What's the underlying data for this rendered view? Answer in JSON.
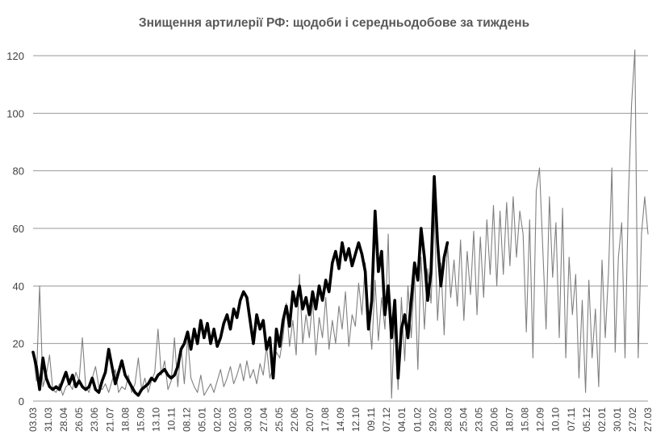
{
  "chart_data": {
    "type": "line",
    "title": "Знищення артилерії РФ: щодоби і середньодобове за тиждень",
    "xlabel": "",
    "ylabel": "",
    "ylim": [
      0,
      120
    ],
    "yticks": [
      0,
      20,
      40,
      60,
      80,
      100,
      120
    ],
    "grid": true,
    "legend": "none",
    "x_tick_labels": [
      "03.03",
      "31.03",
      "28.04",
      "26.05",
      "23.06",
      "21.07",
      "18.08",
      "15.09",
      "13.10",
      "10.11",
      "08.12",
      "05.01",
      "02.02",
      "02.03",
      "30.03",
      "27.04",
      "25.05",
      "22.06",
      "20.07",
      "17.08",
      "14.09",
      "12.10",
      "09.11",
      "07.12",
      "04.01",
      "01.02",
      "29.02",
      "28.03",
      "25.04",
      "23.05",
      "20.06",
      "18.07",
      "15.08",
      "12.09",
      "10.10",
      "07.11",
      "05.12",
      "02.01",
      "30.01",
      "27.02",
      "27.03"
    ],
    "series": [
      {
        "color": "#808080",
        "style": "thin",
        "points": [
          [
            0,
            17
          ],
          [
            1,
            7
          ],
          [
            2,
            40
          ],
          [
            3,
            5
          ],
          [
            4,
            9
          ],
          [
            5,
            16
          ],
          [
            6,
            4
          ],
          [
            7,
            3
          ],
          [
            8,
            6
          ],
          [
            9,
            2
          ],
          [
            10,
            5
          ],
          [
            11,
            6
          ],
          [
            12,
            4
          ],
          [
            13,
            10
          ],
          [
            14,
            7
          ],
          [
            15,
            22
          ],
          [
            16,
            5
          ],
          [
            17,
            3
          ],
          [
            18,
            8
          ],
          [
            19,
            12
          ],
          [
            20,
            5
          ],
          [
            21,
            4
          ],
          [
            22,
            6
          ],
          [
            23,
            3
          ],
          [
            24,
            7
          ],
          [
            25,
            11
          ],
          [
            26,
            3
          ],
          [
            27,
            5
          ],
          [
            28,
            4
          ],
          [
            29,
            9
          ],
          [
            30,
            3
          ],
          [
            31,
            6
          ],
          [
            32,
            15
          ],
          [
            33,
            4
          ],
          [
            34,
            8
          ],
          [
            35,
            3
          ],
          [
            36,
            7
          ],
          [
            37,
            10
          ],
          [
            38,
            25
          ],
          [
            39,
            9
          ],
          [
            40,
            14
          ],
          [
            41,
            4
          ],
          [
            42,
            7
          ],
          [
            43,
            22
          ],
          [
            44,
            5
          ],
          [
            45,
            19
          ],
          [
            46,
            6
          ],
          [
            47,
            22
          ],
          [
            48,
            8
          ],
          [
            49,
            5
          ],
          [
            50,
            3
          ],
          [
            51,
            9
          ],
          [
            52,
            2
          ],
          [
            53,
            4
          ],
          [
            54,
            6
          ],
          [
            55,
            3
          ],
          [
            56,
            7
          ],
          [
            57,
            11
          ],
          [
            58,
            5
          ],
          [
            59,
            8
          ],
          [
            60,
            12
          ],
          [
            61,
            6
          ],
          [
            62,
            9
          ],
          [
            63,
            13
          ],
          [
            64,
            7
          ],
          [
            65,
            14
          ],
          [
            66,
            8
          ],
          [
            67,
            11
          ],
          [
            68,
            6
          ],
          [
            69,
            13
          ],
          [
            70,
            9
          ],
          [
            71,
            19
          ],
          [
            72,
            8
          ],
          [
            73,
            12
          ],
          [
            74,
            17
          ],
          [
            75,
            15
          ],
          [
            76,
            22
          ],
          [
            77,
            34
          ],
          [
            78,
            19
          ],
          [
            79,
            28
          ],
          [
            80,
            16
          ],
          [
            81,
            44
          ],
          [
            82,
            20
          ],
          [
            83,
            30
          ],
          [
            84,
            22
          ],
          [
            85,
            35
          ],
          [
            86,
            16
          ],
          [
            87,
            29
          ],
          [
            88,
            22
          ],
          [
            89,
            36
          ],
          [
            90,
            18
          ],
          [
            91,
            28
          ],
          [
            92,
            20
          ],
          [
            93,
            33
          ],
          [
            94,
            25
          ],
          [
            95,
            38
          ],
          [
            96,
            19
          ],
          [
            97,
            30
          ],
          [
            98,
            26
          ],
          [
            99,
            41
          ],
          [
            100,
            30
          ],
          [
            101,
            48
          ],
          [
            102,
            31
          ],
          [
            103,
            18
          ],
          [
            104,
            42
          ],
          [
            105,
            21
          ],
          [
            106,
            36
          ],
          [
            107,
            25
          ],
          [
            108,
            58
          ],
          [
            109,
            1
          ],
          [
            110,
            30
          ],
          [
            111,
            4
          ],
          [
            112,
            36
          ],
          [
            113,
            14
          ],
          [
            114,
            40
          ],
          [
            115,
            22
          ],
          [
            116,
            44
          ],
          [
            117,
            11
          ],
          [
            118,
            50
          ],
          [
            119,
            25
          ],
          [
            120,
            46
          ],
          [
            121,
            34
          ],
          [
            122,
            65
          ],
          [
            123,
            28
          ],
          [
            124,
            48
          ],
          [
            125,
            23
          ],
          [
            126,
            55
          ],
          [
            127,
            36
          ],
          [
            128,
            49
          ],
          [
            129,
            33
          ],
          [
            130,
            56
          ],
          [
            131,
            28
          ],
          [
            132,
            52
          ],
          [
            133,
            37
          ],
          [
            134,
            59
          ],
          [
            135,
            30
          ],
          [
            136,
            57
          ],
          [
            137,
            36
          ],
          [
            138,
            63
          ],
          [
            139,
            44
          ],
          [
            140,
            68
          ],
          [
            141,
            40
          ],
          [
            142,
            66
          ],
          [
            143,
            44
          ],
          [
            144,
            69
          ],
          [
            145,
            47
          ],
          [
            146,
            71
          ],
          [
            147,
            50
          ],
          [
            148,
            66
          ],
          [
            149,
            58
          ],
          [
            150,
            24
          ],
          [
            151,
            63
          ],
          [
            152,
            15
          ],
          [
            153,
            73
          ],
          [
            154,
            81
          ],
          [
            155,
            53
          ],
          [
            156,
            25
          ],
          [
            157,
            71
          ],
          [
            158,
            43
          ],
          [
            159,
            62
          ],
          [
            160,
            22
          ],
          [
            161,
            67
          ],
          [
            162,
            15
          ],
          [
            163,
            50
          ],
          [
            164,
            30
          ],
          [
            165,
            44
          ],
          [
            166,
            8
          ],
          [
            167,
            35
          ],
          [
            168,
            3
          ],
          [
            169,
            42
          ],
          [
            170,
            15
          ],
          [
            171,
            32
          ],
          [
            172,
            5
          ],
          [
            173,
            49
          ],
          [
            174,
            22
          ],
          [
            175,
            45
          ],
          [
            176,
            81
          ],
          [
            177,
            17
          ],
          [
            178,
            50
          ],
          [
            179,
            62
          ],
          [
            180,
            15
          ],
          [
            181,
            70
          ],
          [
            182,
            103
          ],
          [
            183,
            122
          ],
          [
            184,
            15
          ],
          [
            185,
            58
          ],
          [
            186,
            71
          ],
          [
            187,
            58
          ]
        ]
      },
      {
        "color": "#000000",
        "style": "thick",
        "points": [
          [
            0,
            17
          ],
          [
            1,
            12
          ],
          [
            2,
            4
          ],
          [
            3,
            15
          ],
          [
            4,
            8
          ],
          [
            5,
            5
          ],
          [
            6,
            4
          ],
          [
            7,
            5
          ],
          [
            8,
            4
          ],
          [
            9,
            7
          ],
          [
            10,
            10
          ],
          [
            11,
            6
          ],
          [
            12,
            9
          ],
          [
            13,
            5
          ],
          [
            14,
            7
          ],
          [
            15,
            5
          ],
          [
            16,
            4
          ],
          [
            17,
            5
          ],
          [
            18,
            8
          ],
          [
            19,
            4
          ],
          [
            20,
            3
          ],
          [
            21,
            7
          ],
          [
            22,
            10
          ],
          [
            23,
            18
          ],
          [
            24,
            12
          ],
          [
            25,
            6
          ],
          [
            26,
            10
          ],
          [
            27,
            14
          ],
          [
            28,
            9
          ],
          [
            29,
            7
          ],
          [
            30,
            5
          ],
          [
            31,
            3
          ],
          [
            32,
            2
          ],
          [
            33,
            4
          ],
          [
            34,
            5
          ],
          [
            35,
            6
          ],
          [
            36,
            8
          ],
          [
            37,
            7
          ],
          [
            38,
            9
          ],
          [
            39,
            10
          ],
          [
            40,
            11
          ],
          [
            41,
            9
          ],
          [
            42,
            8
          ],
          [
            43,
            9
          ],
          [
            44,
            12
          ],
          [
            45,
            18
          ],
          [
            46,
            20
          ],
          [
            47,
            24
          ],
          [
            48,
            18
          ],
          [
            49,
            25
          ],
          [
            50,
            20
          ],
          [
            51,
            28
          ],
          [
            52,
            22
          ],
          [
            53,
            27
          ],
          [
            54,
            20
          ],
          [
            55,
            25
          ],
          [
            56,
            19
          ],
          [
            57,
            22
          ],
          [
            58,
            27
          ],
          [
            59,
            30
          ],
          [
            60,
            25
          ],
          [
            61,
            32
          ],
          [
            62,
            29
          ],
          [
            63,
            35
          ],
          [
            64,
            38
          ],
          [
            65,
            36
          ],
          [
            66,
            28
          ],
          [
            67,
            20
          ],
          [
            68,
            30
          ],
          [
            69,
            25
          ],
          [
            70,
            28
          ],
          [
            71,
            18
          ],
          [
            72,
            22
          ],
          [
            73,
            8
          ],
          [
            74,
            25
          ],
          [
            75,
            19
          ],
          [
            76,
            28
          ],
          [
            77,
            33
          ],
          [
            78,
            26
          ],
          [
            79,
            38
          ],
          [
            80,
            33
          ],
          [
            81,
            40
          ],
          [
            82,
            32
          ],
          [
            83,
            36
          ],
          [
            84,
            30
          ],
          [
            85,
            38
          ],
          [
            86,
            32
          ],
          [
            87,
            40
          ],
          [
            88,
            35
          ],
          [
            89,
            42
          ],
          [
            90,
            38
          ],
          [
            91,
            48
          ],
          [
            92,
            52
          ],
          [
            93,
            46
          ],
          [
            94,
            55
          ],
          [
            95,
            49
          ],
          [
            96,
            53
          ],
          [
            97,
            47
          ],
          [
            98,
            51
          ],
          [
            99,
            55
          ],
          [
            100,
            51
          ],
          [
            101,
            45
          ],
          [
            102,
            25
          ],
          [
            103,
            35
          ],
          [
            104,
            66
          ],
          [
            105,
            45
          ],
          [
            106,
            52
          ],
          [
            107,
            30
          ],
          [
            108,
            40
          ],
          [
            109,
            22
          ],
          [
            110,
            35
          ],
          [
            111,
            8
          ],
          [
            112,
            25
          ],
          [
            113,
            30
          ],
          [
            114,
            22
          ],
          [
            115,
            35
          ],
          [
            116,
            48
          ],
          [
            117,
            42
          ],
          [
            118,
            60
          ],
          [
            119,
            50
          ],
          [
            120,
            35
          ],
          [
            121,
            45
          ],
          [
            122,
            78
          ],
          [
            123,
            55
          ],
          [
            124,
            40
          ],
          [
            125,
            50
          ],
          [
            126,
            55
          ]
        ]
      }
    ]
  }
}
